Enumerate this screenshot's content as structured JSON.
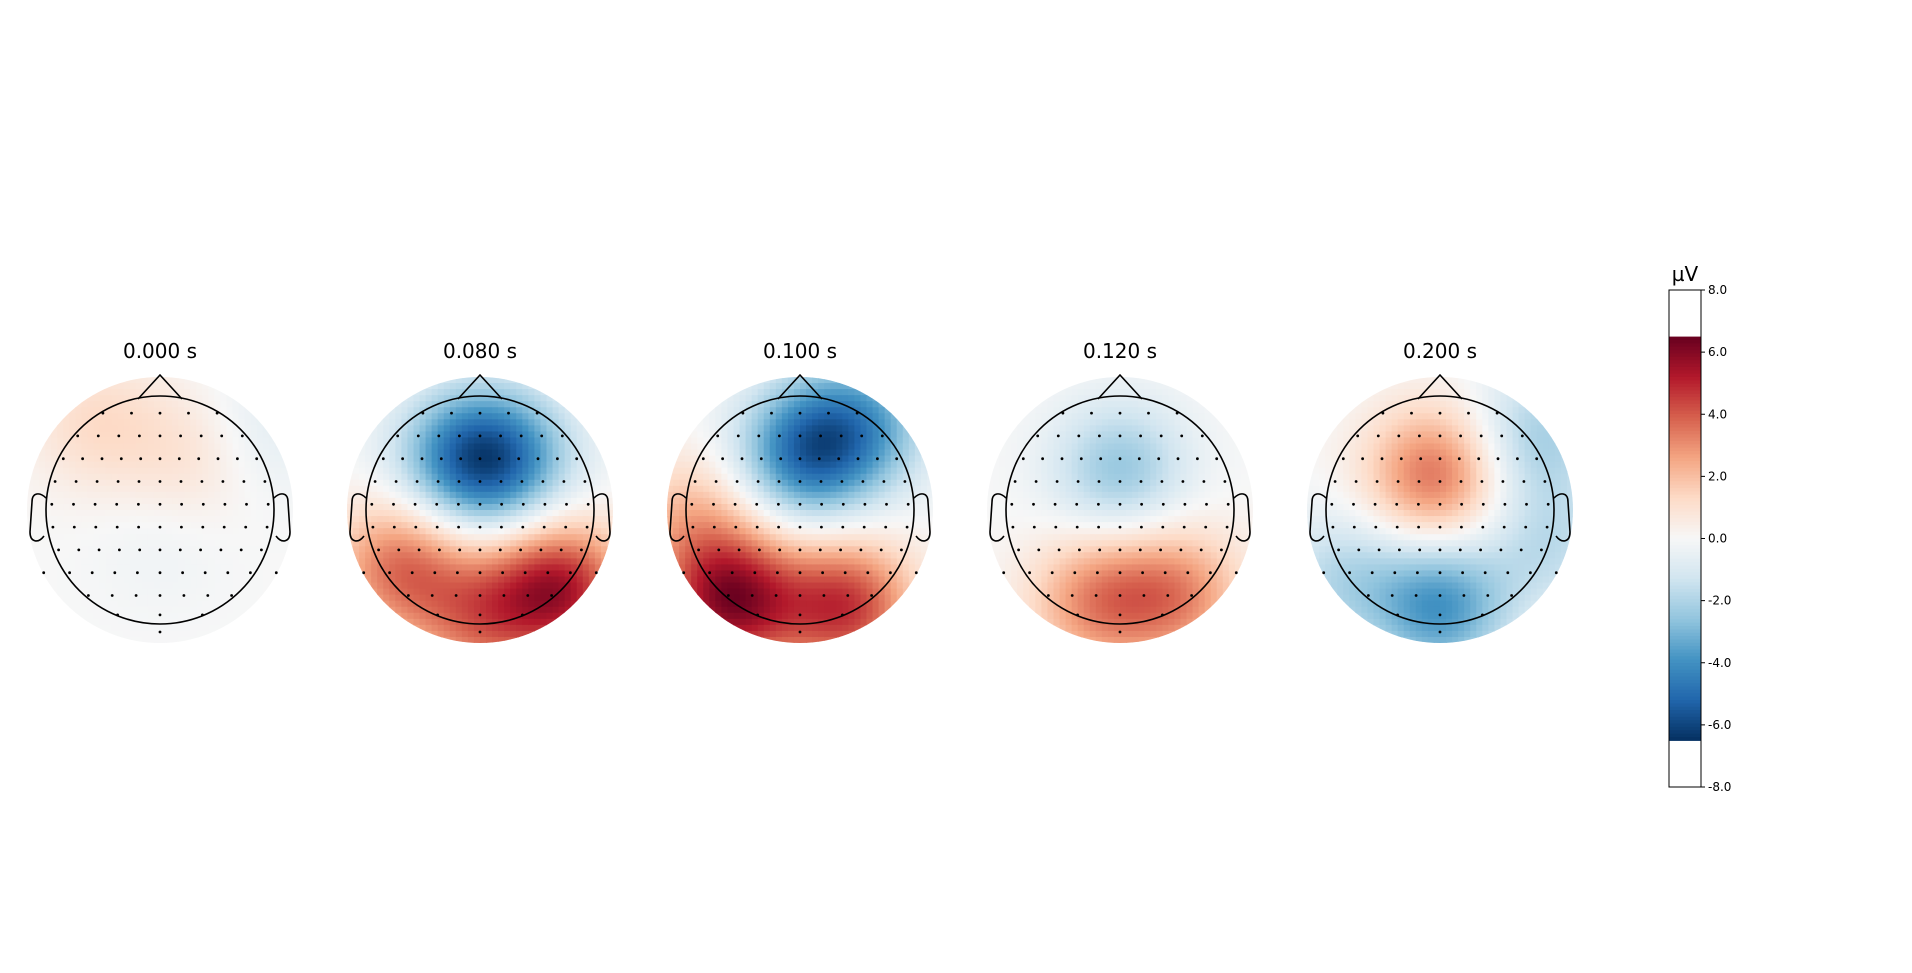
{
  "chart_data": {
    "type": "heatmap",
    "title": "",
    "panels": [
      {
        "time_label": "0.000 s",
        "centers": [
          {
            "x": -0.55,
            "y": 0.75,
            "amp": 1.2
          },
          {
            "x": 0.3,
            "y": 0.5,
            "amp": 1.0
          },
          {
            "x": 0.85,
            "y": 0.7,
            "amp": -0.8
          },
          {
            "x": 0.0,
            "y": -0.3,
            "amp": -0.3
          }
        ]
      },
      {
        "time_label": "0.080 s",
        "centers": [
          {
            "x": -0.15,
            "y": 0.45,
            "amp": -3.8
          },
          {
            "x": 0.25,
            "y": 0.45,
            "amp": -3.4
          },
          {
            "x": 0.7,
            "y": -0.7,
            "amp": 5.2
          },
          {
            "x": -0.7,
            "y": -0.5,
            "amp": 3.5
          },
          {
            "x": 0.0,
            "y": -0.95,
            "amp": 3.0
          }
        ]
      },
      {
        "time_label": "0.100 s",
        "centers": [
          {
            "x": 0.05,
            "y": 0.5,
            "amp": -4.6
          },
          {
            "x": 0.55,
            "y": 0.75,
            "amp": -3.0
          },
          {
            "x": -0.6,
            "y": -0.8,
            "amp": 5.8
          },
          {
            "x": 0.4,
            "y": -0.85,
            "amp": 4.6
          },
          {
            "x": -0.95,
            "y": -0.1,
            "amp": 2.0
          }
        ]
      },
      {
        "time_label": "0.120 s",
        "centers": [
          {
            "x": 0.0,
            "y": 0.35,
            "amp": -2.5
          },
          {
            "x": -0.2,
            "y": -0.8,
            "amp": 3.0
          },
          {
            "x": 0.5,
            "y": -0.75,
            "amp": 3.0
          }
        ]
      },
      {
        "time_label": "0.200 s",
        "centers": [
          {
            "x": -0.05,
            "y": 0.3,
            "amp": 3.6
          },
          {
            "x": 0.0,
            "y": -0.85,
            "amp": -3.8
          },
          {
            "x": 0.85,
            "y": 0.65,
            "amp": -2.2
          },
          {
            "x": -0.85,
            "y": -0.6,
            "amp": -1.8
          },
          {
            "x": 0.95,
            "y": -0.3,
            "amp": -1.6
          }
        ]
      }
    ],
    "colorbar": {
      "unit": "µV",
      "ticks": [
        "8.0",
        "6.0",
        "4.0",
        "2.0",
        "0.0",
        "-2.0",
        "-4.0",
        "-6.0",
        "-8.0"
      ],
      "range": [
        -8,
        8
      ],
      "color_range": [
        -6.5,
        6.5
      ],
      "colormap": "RdBu_r"
    }
  }
}
